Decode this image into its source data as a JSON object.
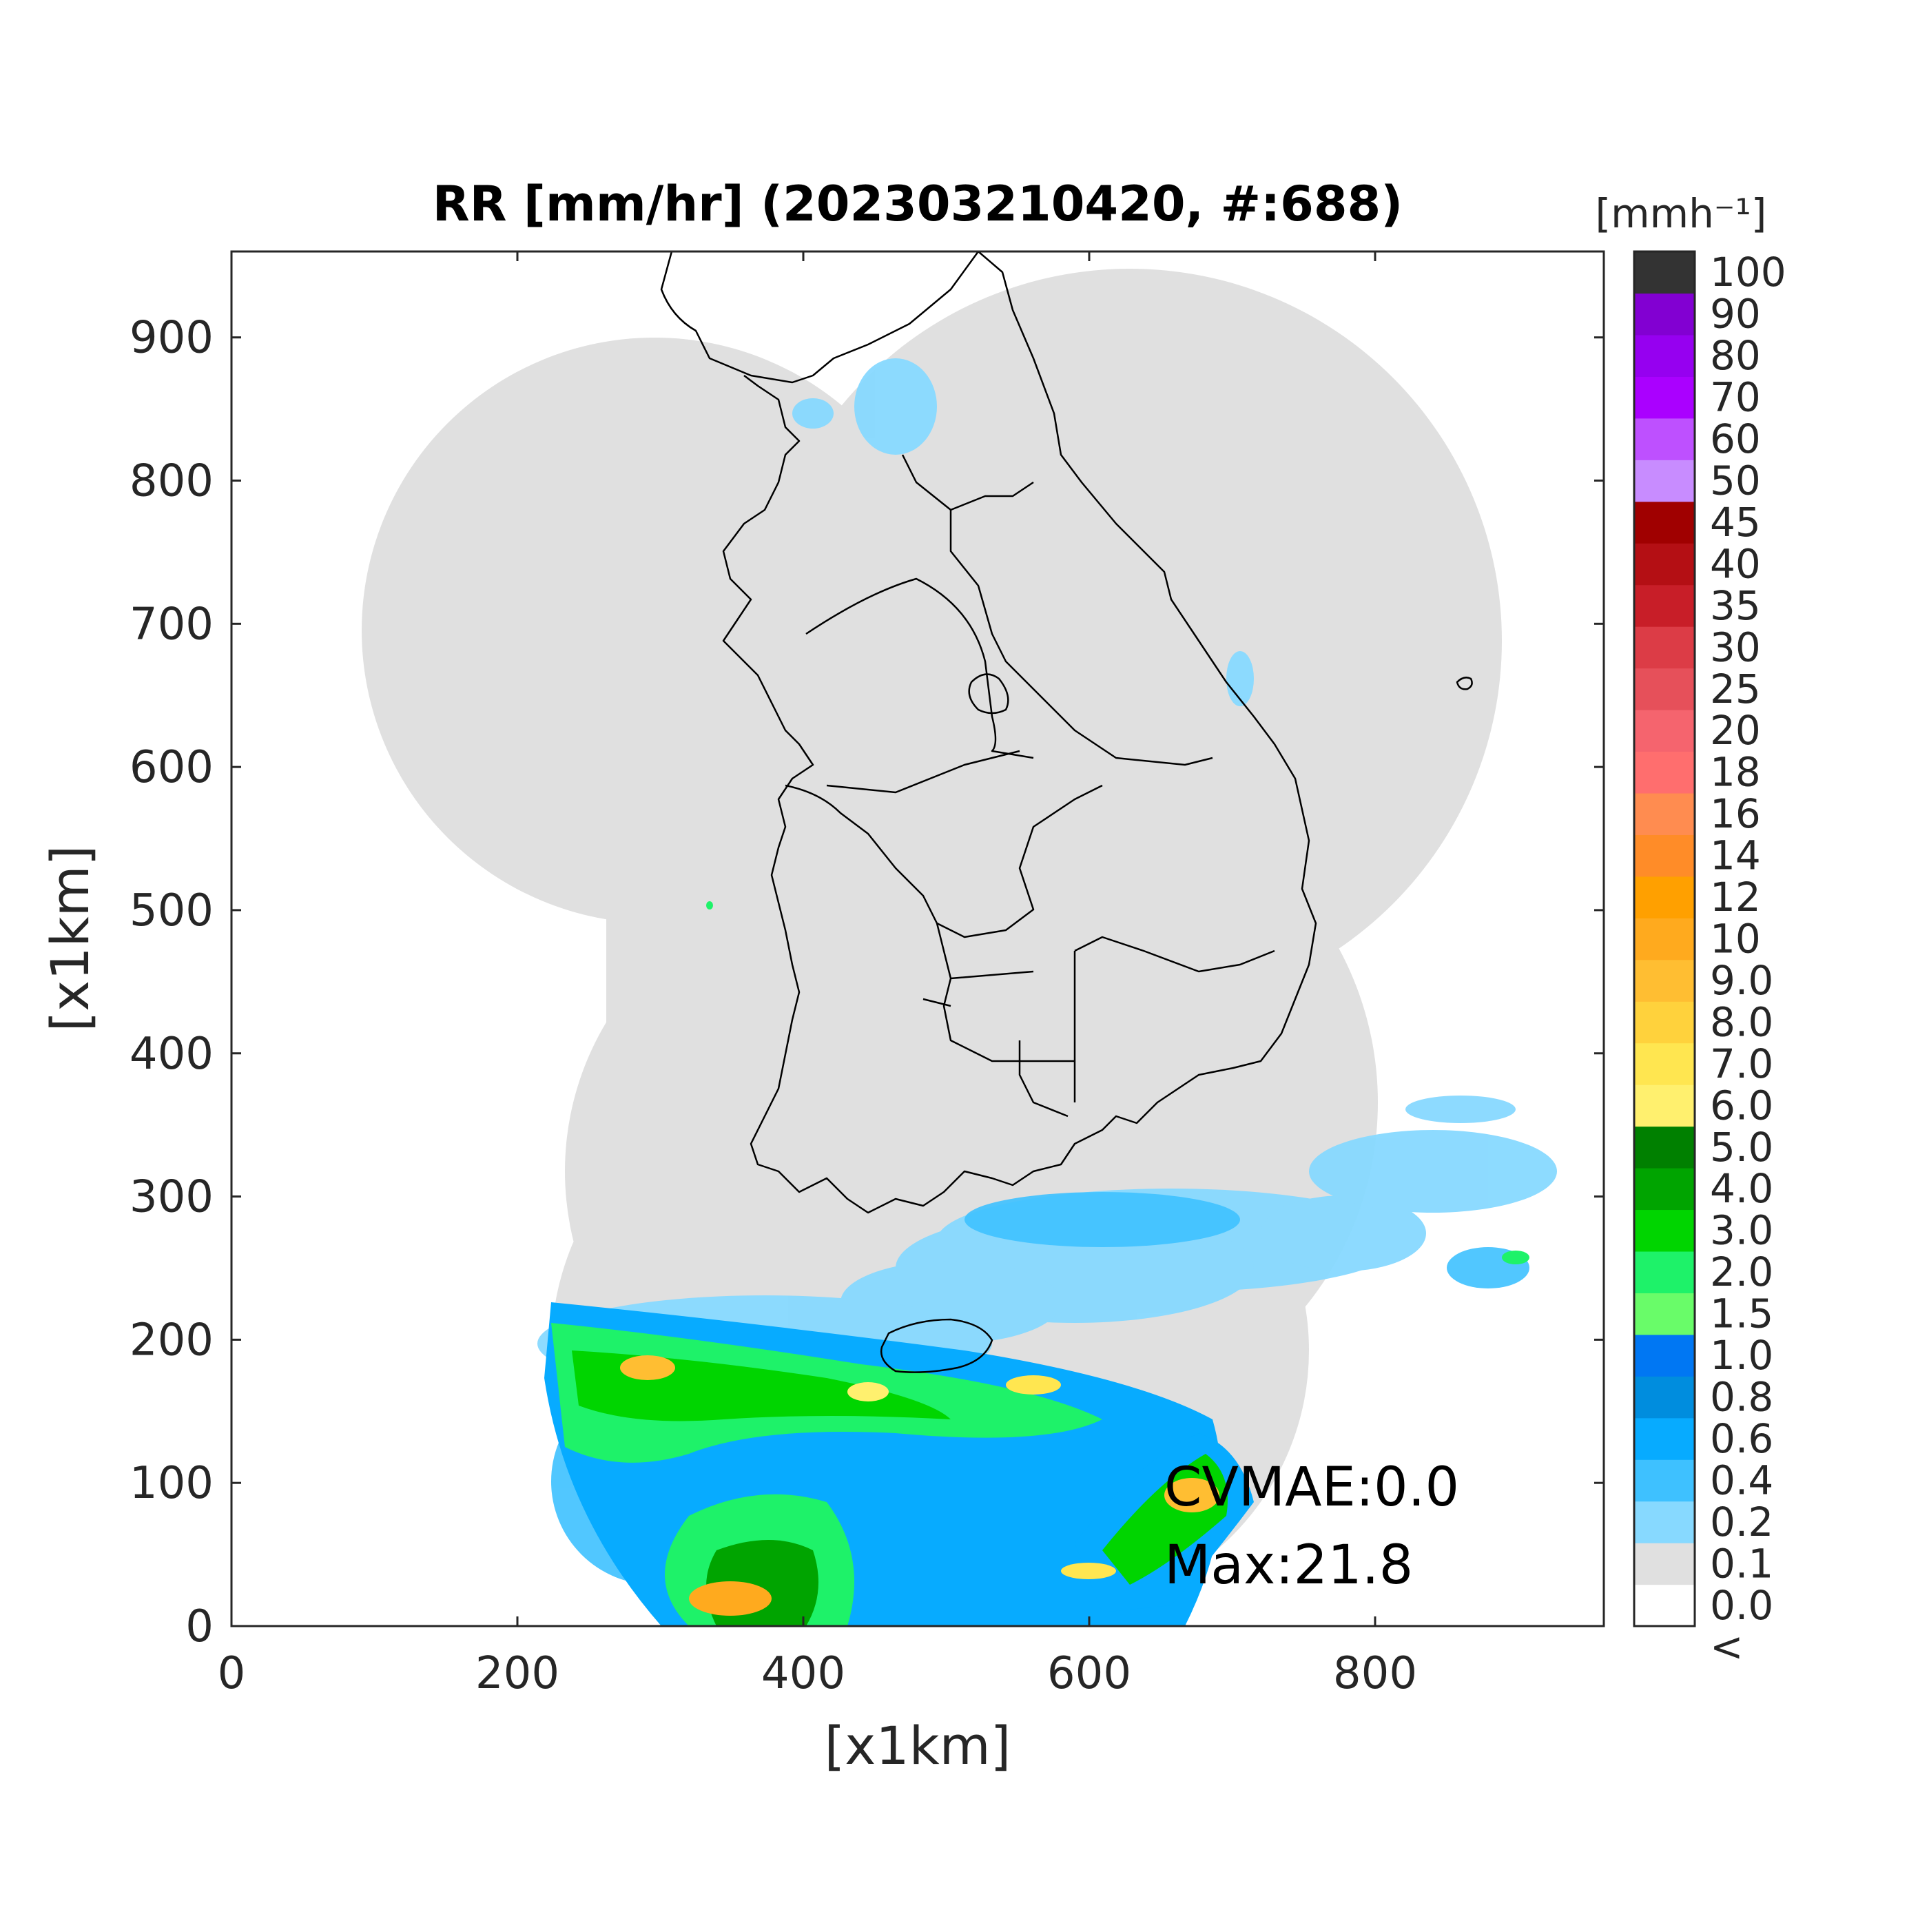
{
  "title": "RR [mm/hr] (202303210420, #:688)",
  "xlabel": "[x1km]",
  "ylabel": "[x1km]",
  "x_ticks": [
    "0",
    "200",
    "400",
    "600",
    "800"
  ],
  "y_ticks": [
    "0",
    "100",
    "200",
    "300",
    "400",
    "500",
    "600",
    "700",
    "800",
    "900"
  ],
  "colorbar": {
    "unit_label": "[mmh⁻¹]",
    "labels": [
      "<",
      "0.0",
      "0.1",
      "0.2",
      "0.4",
      "0.6",
      "0.8",
      "1.0",
      "1.5",
      "2.0",
      "3.0",
      "4.0",
      "5.0",
      "6.0",
      "7.0",
      "8.0",
      "9.0",
      "10",
      "12",
      "14",
      "16",
      "18",
      "20",
      "25",
      "30",
      "35",
      "40",
      "45",
      "50",
      "60",
      "70",
      "80",
      "90",
      "100"
    ],
    "colors": [
      "#ffffff",
      "#e0e0e0",
      "#87d9ff",
      "#3ec1ff",
      "#07abff",
      "#008dde",
      "#0077f3",
      "#69fc69",
      "#1ef269",
      "#00d500",
      "#00a400",
      "#008000",
      "#fff06e",
      "#ffe650",
      "#ffd23c",
      "#ffbe32",
      "#ffaa1e",
      "#ffa000",
      "#ff8c28",
      "#ff8c50",
      "#ff6e6e",
      "#f5646e",
      "#e6505a",
      "#dc3c46",
      "#c81e28",
      "#b40f14",
      "#a00000",
      "#c88cff",
      "#be50ff",
      "#aa00ff",
      "#9600f0",
      "#8200d2",
      "#333333"
    ]
  },
  "annotations": {
    "cvmae": "CVMAE:0.0",
    "max": "Max:21.8"
  },
  "colors": {
    "coverage": "#e0e0e0",
    "coast": "#000000"
  }
}
